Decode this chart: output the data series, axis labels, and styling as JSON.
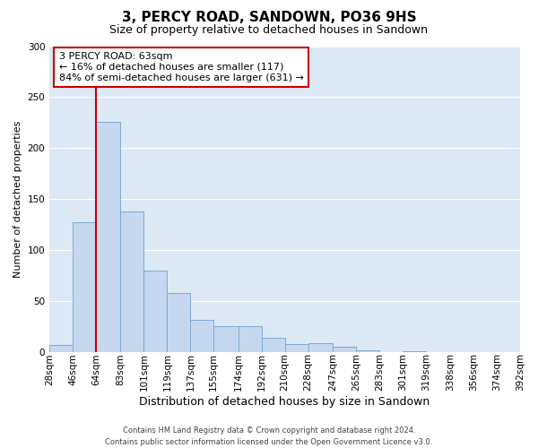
{
  "title": "3, PERCY ROAD, SANDOWN, PO36 9HS",
  "subtitle": "Size of property relative to detached houses in Sandown",
  "xlabel": "Distribution of detached houses by size in Sandown",
  "ylabel": "Number of detached properties",
  "bin_edges": [
    28,
    46,
    64,
    83,
    101,
    119,
    137,
    155,
    174,
    192,
    210,
    228,
    247,
    265,
    283,
    301,
    319,
    338,
    356,
    374,
    392
  ],
  "bin_labels": [
    "28sqm",
    "46sqm",
    "64sqm",
    "83sqm",
    "101sqm",
    "119sqm",
    "137sqm",
    "155sqm",
    "174sqm",
    "192sqm",
    "210sqm",
    "228sqm",
    "247sqm",
    "265sqm",
    "283sqm",
    "301sqm",
    "319sqm",
    "338sqm",
    "356sqm",
    "374sqm",
    "392sqm"
  ],
  "heights": [
    7,
    127,
    226,
    138,
    80,
    58,
    32,
    25,
    25,
    14,
    8,
    9,
    5,
    2,
    0,
    1,
    0,
    0,
    0,
    0
  ],
  "bar_fill_color": "#c5d8f0",
  "bar_edge_color": "#7aadd4",
  "red_line_x": 64,
  "annotation_line1": "3 PERCY ROAD: 63sqm",
  "annotation_line2": "← 16% of detached houses are smaller (117)",
  "annotation_line3": "84% of semi-detached houses are larger (631) →",
  "annotation_box_color": "#ffffff",
  "annotation_box_edge_color": "#cc0000",
  "ylim": [
    0,
    300
  ],
  "yticks": [
    0,
    50,
    100,
    150,
    200,
    250,
    300
  ],
  "bg_color": "#dde8f5",
  "grid_color": "#ffffff",
  "fig_bg_color": "#ffffff",
  "footer_line1": "Contains HM Land Registry data © Crown copyright and database right 2024.",
  "footer_line2": "Contains public sector information licensed under the Open Government Licence v3.0.",
  "title_fontsize": 11,
  "subtitle_fontsize": 9,
  "xlabel_fontsize": 9,
  "ylabel_fontsize": 8,
  "tick_fontsize": 7.5,
  "annotation_fontsize": 8,
  "footer_fontsize": 6
}
